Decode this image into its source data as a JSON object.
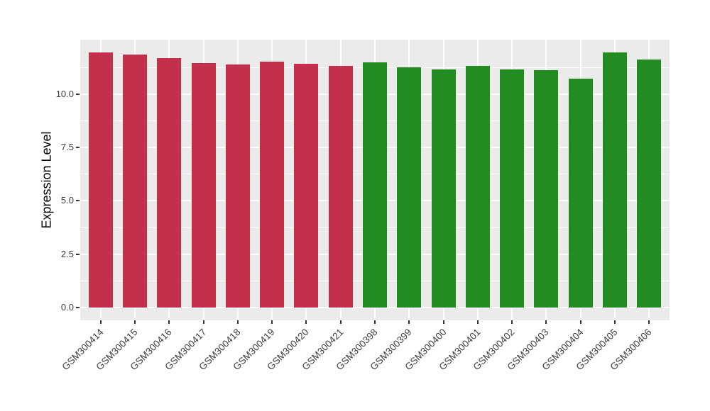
{
  "figure": {
    "background": "#FFFFFF"
  },
  "chart_data": {
    "type": "bar",
    "title": "",
    "xlabel": "",
    "ylabel": "Expression Level",
    "legend": "none",
    "grid": "on",
    "panel_bg": "#EBEBEB",
    "grid_color": "#FFFFFF",
    "tick_color": "#333333",
    "tick_text_color": "#404040",
    "axis_title_color": "#000000",
    "group_colors": {
      "group1": "#C3304C",
      "group2": "#228B22"
    },
    "y_axis": {
      "panel_range": [
        -0.6,
        12.55
      ],
      "ticks": [
        {
          "label": "0.0",
          "value": 0
        },
        {
          "label": "2.5",
          "value": 2.5
        },
        {
          "label": "5.0",
          "value": 5
        },
        {
          "label": "7.5",
          "value": 7.5
        },
        {
          "label": "10.0",
          "value": 10
        }
      ],
      "minor_values": [
        1.25,
        3.75,
        6.25,
        8.75,
        11.25
      ]
    },
    "categories": [
      "GSM300414",
      "GSM300415",
      "GSM300416",
      "GSM300417",
      "GSM300418",
      "GSM300419",
      "GSM300420",
      "GSM300421",
      "GSM300398",
      "GSM300399",
      "GSM300400",
      "GSM300401",
      "GSM300402",
      "GSM300403",
      "GSM300404",
      "GSM300405",
      "GSM300406"
    ],
    "values": [
      11.96,
      11.86,
      11.68,
      11.46,
      11.39,
      11.51,
      11.43,
      11.33,
      11.48,
      11.27,
      11.17,
      11.31,
      11.15,
      11.12,
      10.73,
      11.94,
      11.63
    ],
    "bars": [
      {
        "label": "GSM300414",
        "value": 11.96,
        "group": "group1"
      },
      {
        "label": "GSM300415",
        "value": 11.86,
        "group": "group1"
      },
      {
        "label": "GSM300416",
        "value": 11.68,
        "group": "group1"
      },
      {
        "label": "GSM300417",
        "value": 11.46,
        "group": "group1"
      },
      {
        "label": "GSM300418",
        "value": 11.39,
        "group": "group1"
      },
      {
        "label": "GSM300419",
        "value": 11.51,
        "group": "group1"
      },
      {
        "label": "GSM300420",
        "value": 11.43,
        "group": "group1"
      },
      {
        "label": "GSM300421",
        "value": 11.33,
        "group": "group1"
      },
      {
        "label": "GSM300398",
        "value": 11.48,
        "group": "group2"
      },
      {
        "label": "GSM300399",
        "value": 11.27,
        "group": "group2"
      },
      {
        "label": "GSM300400",
        "value": 11.17,
        "group": "group2"
      },
      {
        "label": "GSM300401",
        "value": 11.31,
        "group": "group2"
      },
      {
        "label": "GSM300402",
        "value": 11.15,
        "group": "group2"
      },
      {
        "label": "GSM300403",
        "value": 11.12,
        "group": "group2"
      },
      {
        "label": "GSM300404",
        "value": 10.73,
        "group": "group2"
      },
      {
        "label": "GSM300405",
        "value": 11.94,
        "group": "group2"
      },
      {
        "label": "GSM300406",
        "value": 11.63,
        "group": "group2"
      }
    ]
  }
}
